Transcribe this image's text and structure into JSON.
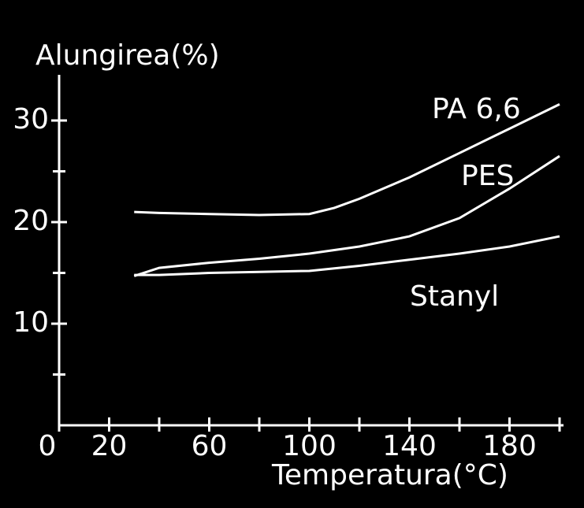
{
  "chart_data": {
    "type": "line",
    "y_label": "Alungirea(%)",
    "x_label": "Temperatura(°C)",
    "xlim": [
      0,
      200
    ],
    "ylim": [
      0,
      34.5
    ],
    "xticks": [
      0,
      20,
      60,
      100,
      140,
      180
    ],
    "xminor_ticks": [
      40,
      80,
      120,
      160,
      200
    ],
    "yticks": [
      10,
      20,
      30
    ],
    "yminor_ticks": [
      5,
      15,
      25
    ],
    "background": "#000000",
    "series": [
      {
        "name": "PA 6,6",
        "color": "#ffffff",
        "x": [
          30,
          40,
          60,
          80,
          100,
          110,
          120,
          140,
          160,
          180,
          200
        ],
        "values": [
          21,
          20.9,
          20.8,
          20.7,
          20.8,
          21.4,
          22.3,
          24.4,
          26.8,
          29.2,
          31.6
        ]
      },
      {
        "name": "PES",
        "color": "#ffffff",
        "x": [
          30,
          40,
          60,
          80,
          100,
          120,
          140,
          160,
          180,
          200
        ],
        "values": [
          14.7,
          15.5,
          16,
          16.4,
          16.9,
          17.6,
          18.6,
          20.4,
          23.3,
          26.5
        ]
      },
      {
        "name": "Stanyl",
        "color": "#ffffff",
        "x": [
          30,
          40,
          60,
          80,
          100,
          120,
          140,
          160,
          180,
          200
        ],
        "values": [
          14.8,
          14.8,
          15,
          15.1,
          15.2,
          15.7,
          16.3,
          16.9,
          17.6,
          18.6
        ]
      }
    ]
  }
}
